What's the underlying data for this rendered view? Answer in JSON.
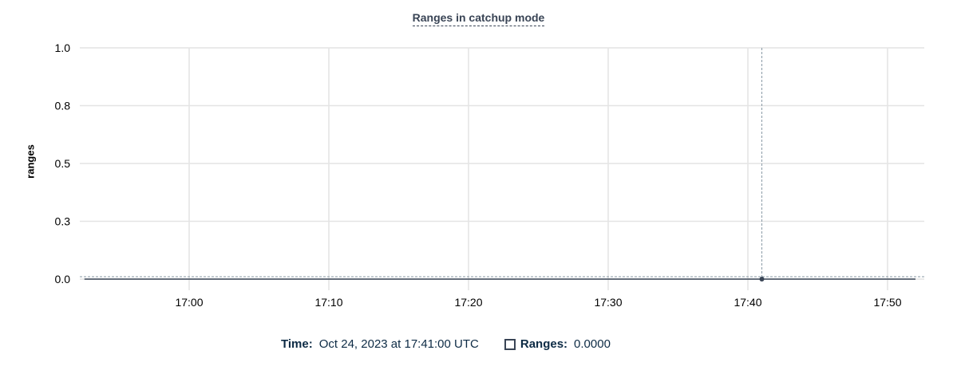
{
  "chart_data": {
    "type": "line",
    "title": "Ranges in catchup mode",
    "ylabel": "ranges",
    "xlabel": "",
    "ylim": [
      0,
      1
    ],
    "xlim": [
      "16:52",
      "17:52:40"
    ],
    "y_ticks": [
      0,
      0.25,
      0.5,
      0.75,
      1
    ],
    "y_tick_labels": [
      "0.0",
      "0.3",
      "0.5",
      "0.8",
      "1.0"
    ],
    "x_ticks": [
      "17:00",
      "17:10",
      "17:20",
      "17:30",
      "17:40",
      "17:50"
    ],
    "grid": true,
    "series": [
      {
        "name": "Ranges",
        "color": "#394455",
        "x_start": "16:52:30",
        "x_end": "17:52:00",
        "value_constant": 0
      }
    ],
    "hover": {
      "time": "17:41",
      "value": 0
    }
  },
  "legend": {
    "time_label": "Time:",
    "time_value": "Oct 24, 2023 at 17:41:00 UTC",
    "series_label": "Ranges:",
    "series_value": "0.0000"
  }
}
